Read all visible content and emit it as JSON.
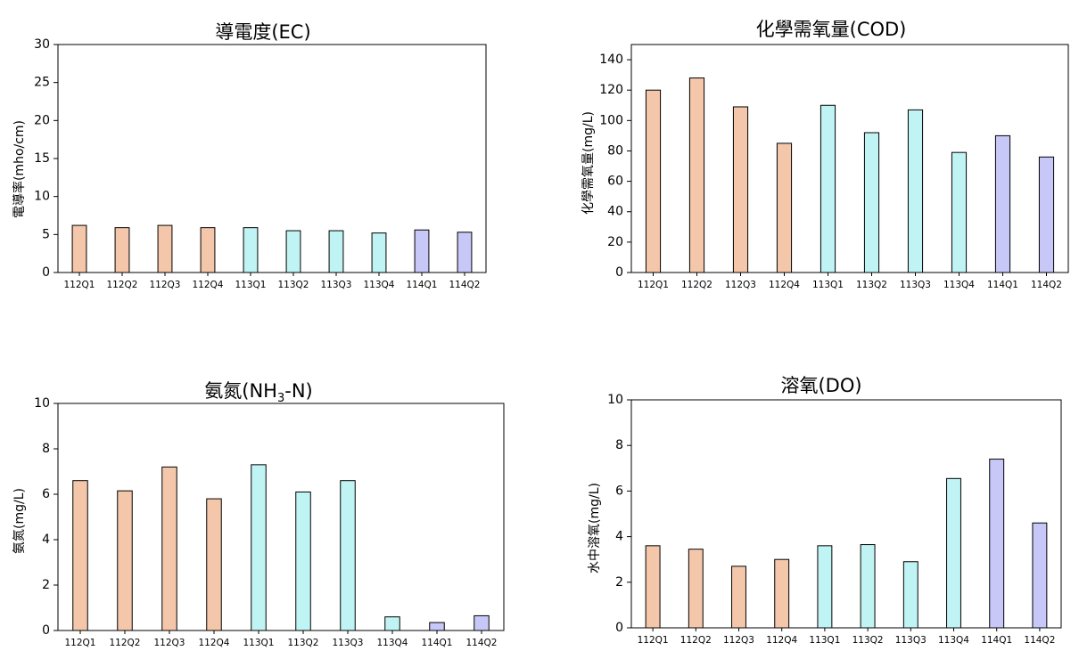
{
  "colors": {
    "group_112": "#f4c7ab",
    "group_113": "#c0f4f4",
    "group_114": "#c8c8f8"
  },
  "chart_data": [
    {
      "type": "bar",
      "title": "導電度(EC)",
      "ylabel": "電導率(mho/cm)",
      "categories": [
        "112Q1",
        "112Q2",
        "112Q3",
        "112Q4",
        "113Q1",
        "113Q2",
        "113Q3",
        "113Q4",
        "114Q1",
        "114Q2"
      ],
      "values": [
        6.2,
        5.9,
        6.2,
        5.9,
        5.9,
        5.5,
        5.5,
        5.2,
        5.6,
        5.3
      ],
      "ylim": [
        0,
        30
      ],
      "yticks": [
        0,
        5,
        10,
        15,
        20,
        25,
        30
      ],
      "grid": false
    },
    {
      "type": "bar",
      "title": "化學需氧量(COD)",
      "ylabel": "化學需氧量(mg/L)",
      "categories": [
        "112Q1",
        "112Q2",
        "112Q3",
        "112Q4",
        "113Q1",
        "113Q2",
        "113Q3",
        "113Q4",
        "114Q1",
        "114Q2"
      ],
      "values": [
        120,
        128,
        109,
        85,
        110,
        92,
        107,
        79,
        90,
        76
      ],
      "ylim": [
        0,
        150
      ],
      "yticks": [
        0,
        20,
        40,
        60,
        80,
        100,
        120,
        140
      ],
      "grid": false
    },
    {
      "type": "bar",
      "title": "氨氮(NH",
      "title_sub": "3",
      "title_tail": "-N)",
      "ylabel": "氨氮(mg/L)",
      "categories": [
        "112Q1",
        "112Q2",
        "112Q3",
        "112Q4",
        "113Q1",
        "113Q2",
        "113Q3",
        "113Q4",
        "114Q1",
        "114Q2"
      ],
      "values": [
        6.6,
        6.15,
        7.2,
        5.8,
        7.3,
        6.1,
        6.6,
        0.6,
        0.35,
        0.65
      ],
      "ylim": [
        0,
        10
      ],
      "yticks": [
        0,
        2,
        4,
        6,
        8,
        10
      ],
      "grid": false
    },
    {
      "type": "bar",
      "title": "溶氧(DO)",
      "ylabel": "水中溶氧(mg/L)",
      "categories": [
        "112Q1",
        "112Q2",
        "112Q3",
        "112Q4",
        "113Q1",
        "113Q2",
        "113Q3",
        "113Q4",
        "114Q1",
        "114Q2"
      ],
      "values": [
        3.6,
        3.45,
        2.7,
        3.0,
        3.6,
        3.65,
        2.9,
        6.55,
        7.4,
        4.6
      ],
      "ylim": [
        0,
        10
      ],
      "yticks": [
        0,
        2,
        4,
        6,
        8,
        10
      ],
      "grid": false
    }
  ]
}
